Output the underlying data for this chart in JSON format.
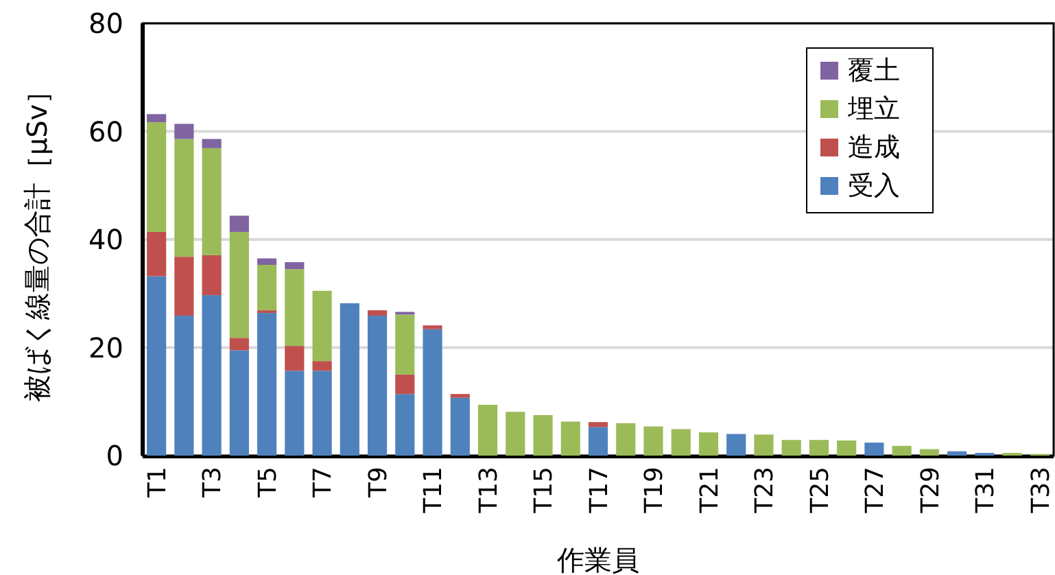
{
  "chart_data": {
    "type": "bar",
    "stacked": true,
    "xlabel": "作業員",
    "ylabel": "被ばく線量の合計［μSv］",
    "categories": [
      "T1",
      null,
      "T3",
      null,
      "T5",
      null,
      "T7",
      null,
      "T9",
      null,
      "T11",
      null,
      "T13",
      null,
      "T15",
      null,
      "T17",
      null,
      "T19",
      null,
      "T21",
      null,
      "T23",
      null,
      "T25",
      null,
      "T27",
      null,
      "T29",
      null,
      "T31",
      null,
      "T33"
    ],
    "series": [
      {
        "name": "受入",
        "color": "#4f81bd",
        "values": [
          33.2,
          25.9,
          29.7,
          19.5,
          26.4,
          15.7,
          15.7,
          28.2,
          25.9,
          11.4,
          23.4,
          10.7,
          0,
          0,
          0,
          0,
          5.3,
          0,
          0,
          0,
          0,
          4.0,
          0,
          0,
          0,
          0,
          2.4,
          0,
          0,
          0.8,
          0.5,
          0,
          0
        ]
      },
      {
        "name": "造成",
        "color": "#c0504d",
        "values": [
          8.2,
          10.9,
          7.4,
          2.3,
          0.5,
          4.6,
          1.8,
          0,
          1.0,
          3.6,
          0.7,
          0.7,
          0,
          0,
          0,
          0,
          0.9,
          0,
          0,
          0,
          0,
          0,
          0,
          0,
          0,
          0,
          0,
          0,
          0,
          0,
          0,
          0,
          0
        ]
      },
      {
        "name": "埋立",
        "color": "#9bbb59",
        "values": [
          20.3,
          21.8,
          19.8,
          19.6,
          8.4,
          14.2,
          13.0,
          0,
          0,
          11.1,
          0,
          0,
          9.4,
          8.1,
          7.5,
          6.3,
          0,
          6.0,
          5.4,
          4.9,
          4.3,
          0,
          3.9,
          2.9,
          2.9,
          2.8,
          0,
          1.8,
          1.2,
          0,
          0,
          0.5,
          0.3
        ]
      },
      {
        "name": "覆土",
        "color": "#8064a2",
        "values": [
          1.5,
          2.8,
          1.7,
          3.0,
          1.2,
          1.3,
          0,
          0,
          0,
          0.5,
          0,
          0,
          0,
          0,
          0,
          0,
          0,
          0,
          0,
          0,
          0,
          0,
          0,
          0,
          0,
          0,
          0,
          0,
          0,
          0,
          0,
          0,
          0
        ]
      }
    ],
    "ylim": [
      0,
      80
    ],
    "yticks": [
      0,
      20,
      40,
      60,
      80
    ],
    "grid": "y",
    "legend": "top right"
  }
}
